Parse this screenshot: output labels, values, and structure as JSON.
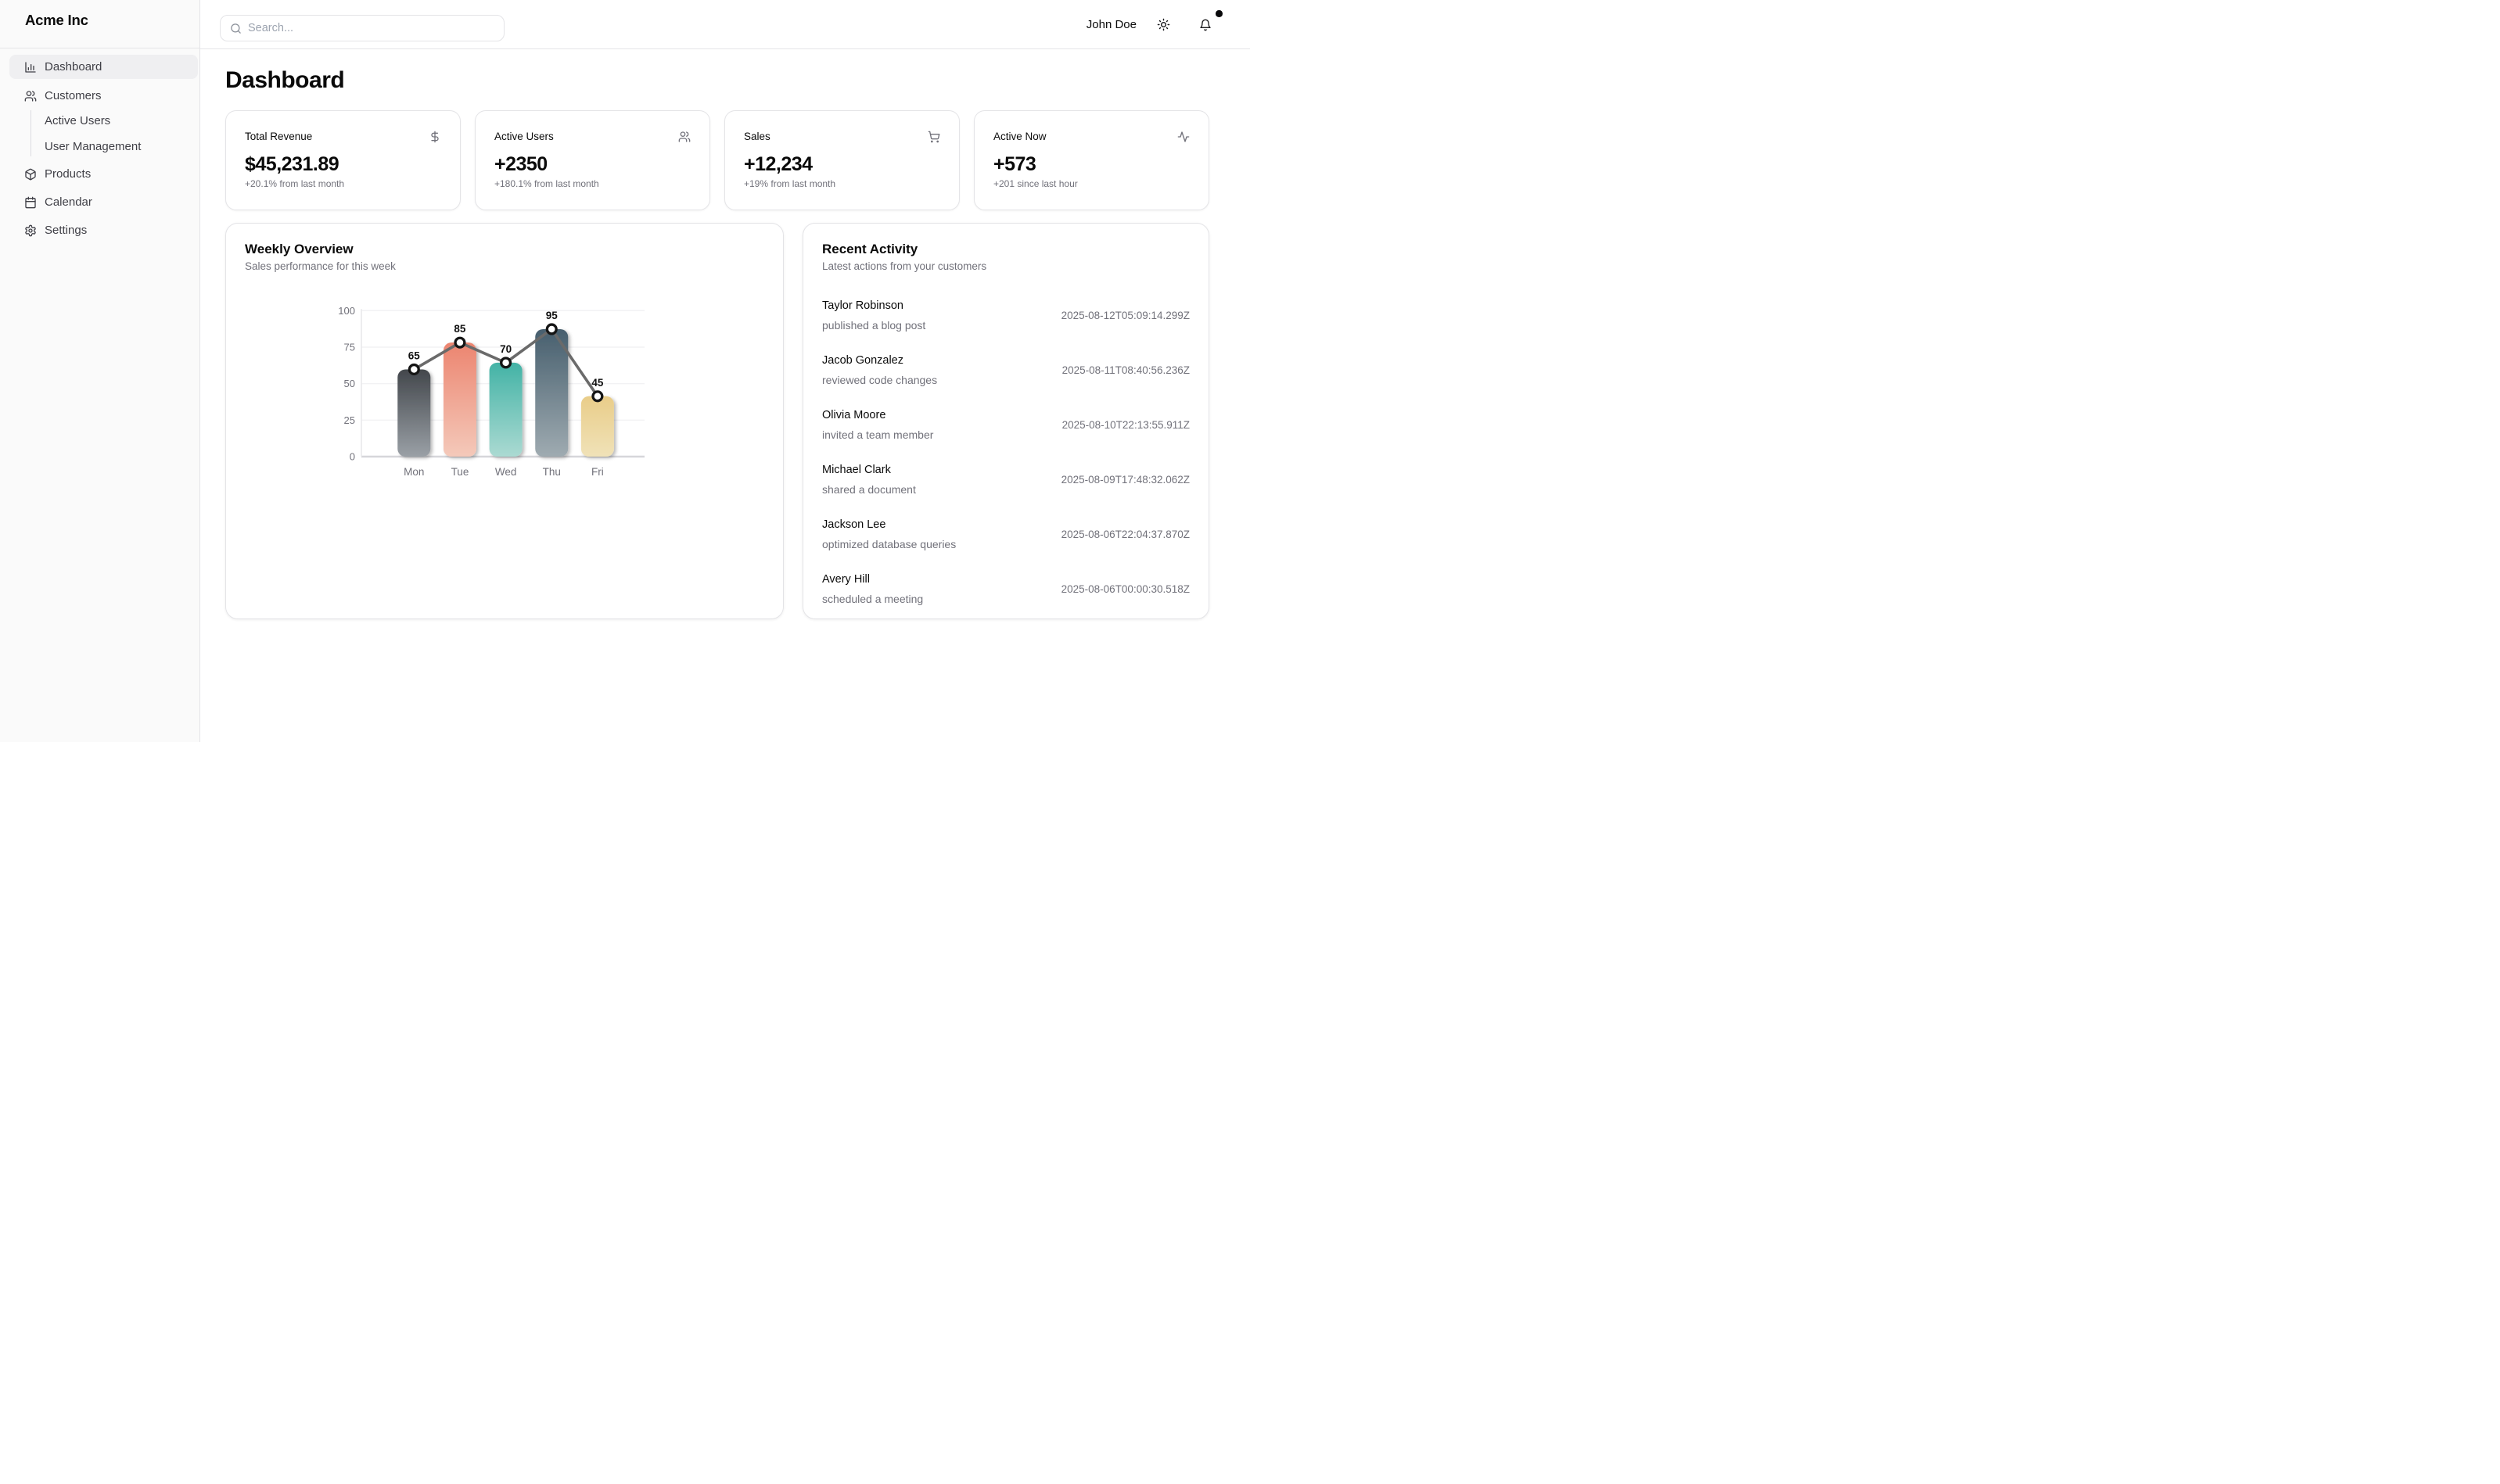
{
  "brand": "Acme Inc",
  "sidebar": {
    "items": [
      {
        "label": "Dashboard",
        "icon": "bar-chart-icon",
        "active": true
      },
      {
        "label": "Customers",
        "icon": "users-icon",
        "active": false
      },
      {
        "label": "Products",
        "icon": "package-icon",
        "active": false
      },
      {
        "label": "Calendar",
        "icon": "calendar-icon",
        "active": false
      },
      {
        "label": "Settings",
        "icon": "gear-icon",
        "active": false
      }
    ],
    "customer_subitems": [
      {
        "label": "Active Users"
      },
      {
        "label": "User Management"
      }
    ]
  },
  "header": {
    "search_placeholder": "Search...",
    "user_name": "John Doe",
    "icons": [
      "sun-icon",
      "bell-icon"
    ],
    "notification_dot_color": "#09090b"
  },
  "page_title": "Dashboard",
  "stats": [
    {
      "label": "Total Revenue",
      "icon": "dollar-icon",
      "value": "$45,231.89",
      "change": "+20.1% from last month"
    },
    {
      "label": "Active Users",
      "icon": "users-icon",
      "value": "+2350",
      "change": "+180.1% from last month"
    },
    {
      "label": "Sales",
      "icon": "cart-icon",
      "value": "+12,234",
      "change": "+19% from last month"
    },
    {
      "label": "Active Now",
      "icon": "activity-icon",
      "value": "+573",
      "change": "+201 since last hour"
    }
  ],
  "weekly_overview": {
    "title": "Weekly Overview",
    "subtitle": "Sales performance for this week"
  },
  "chart_data": {
    "type": "bar",
    "overlay": "line",
    "title": "Weekly Overview",
    "xlabel": "",
    "ylabel": "",
    "categories": [
      "Mon",
      "Tue",
      "Wed",
      "Thu",
      "Fri"
    ],
    "values": [
      65,
      85,
      70,
      95,
      45
    ],
    "y_ticks": [
      0,
      25,
      50,
      75,
      100
    ],
    "ylim": [
      0,
      108
    ],
    "grid": true,
    "legend": false,
    "value_labels": true,
    "bar_gradients": [
      [
        "#43474c",
        "#9aa0a6"
      ],
      [
        "#ec8570",
        "#f4c9ba"
      ],
      [
        "#43b3a6",
        "#abdad2"
      ],
      [
        "#475f6e",
        "#9fabb1"
      ],
      [
        "#e9cd89",
        "#f0e2b8"
      ]
    ],
    "line_color": "#6a6a6a",
    "dot_stroke_color": "#151515",
    "dot_fill_color": "#ffffff",
    "label_color": "#111111",
    "axis_text_color": "#71717a"
  },
  "recent_activity": {
    "title": "Recent Activity",
    "subtitle": "Latest actions from your customers",
    "items": [
      {
        "name": "Taylor Robinson",
        "action": "published a blog post",
        "timestamp": "2025-08-12T05:09:14.299Z"
      },
      {
        "name": "Jacob Gonzalez",
        "action": "reviewed code changes",
        "timestamp": "2025-08-11T08:40:56.236Z"
      },
      {
        "name": "Olivia Moore",
        "action": "invited a team member",
        "timestamp": "2025-08-10T22:13:55.911Z"
      },
      {
        "name": "Michael Clark",
        "action": "shared a document",
        "timestamp": "2025-08-09T17:48:32.062Z"
      },
      {
        "name": "Jackson Lee",
        "action": "optimized database queries",
        "timestamp": "2025-08-06T22:04:37.870Z"
      },
      {
        "name": "Avery Hill",
        "action": "scheduled a meeting",
        "timestamp": "2025-08-06T00:00:30.518Z"
      }
    ]
  }
}
